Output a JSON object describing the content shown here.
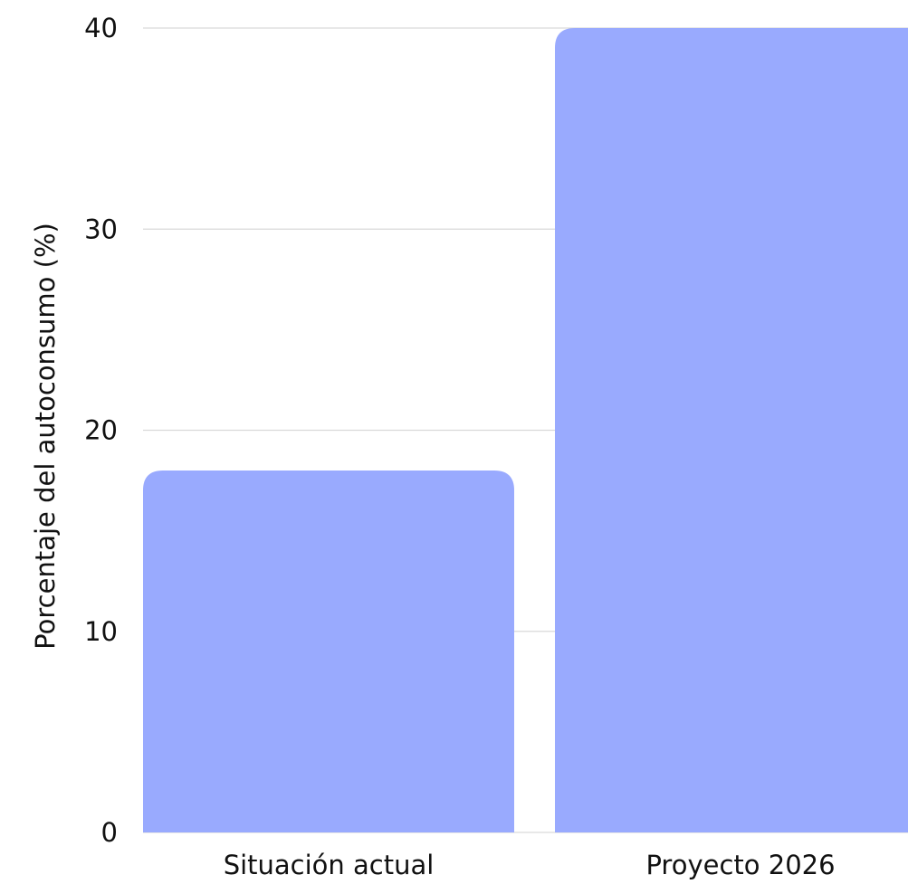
{
  "chart_data": {
    "type": "bar",
    "categories": [
      "Situación actual",
      "Proyecto 2026"
    ],
    "values": [
      18,
      40
    ],
    "title": "",
    "xlabel": "",
    "ylabel": "Porcentaje del autoconsumo (%)",
    "ylim": [
      0,
      40
    ],
    "yticks": [
      0,
      10,
      20,
      30,
      40
    ],
    "grid": true,
    "legend": "none",
    "bar_color": "#99aafe",
    "grid_color": "#d9d9d9"
  }
}
